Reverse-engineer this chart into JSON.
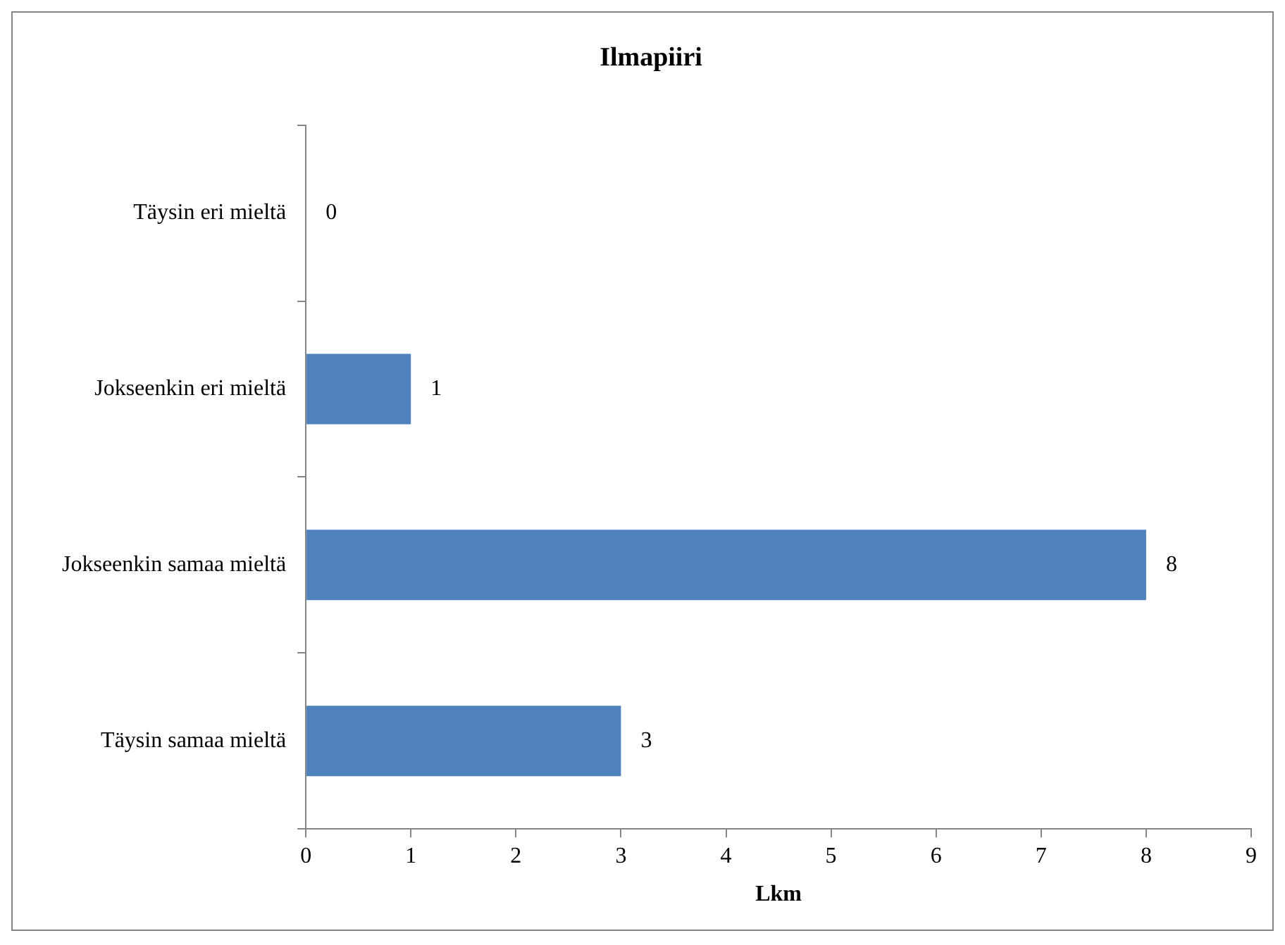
{
  "chart_data": {
    "type": "bar",
    "orientation": "horizontal",
    "title": "Ilmapiiri",
    "xlabel": "Lkm",
    "categories": [
      "Täysin eri mieltä",
      "Jokseenkin eri mieltä",
      "Jokseenkin samaa mieltä",
      "Täysin samaa mieltä"
    ],
    "values": [
      0,
      1,
      8,
      3
    ],
    "color": "#4f81bd",
    "xlim": [
      0,
      9
    ],
    "xticks": [
      0,
      1,
      2,
      3,
      4,
      5,
      6,
      7,
      8,
      9
    ],
    "grid": false,
    "legend": false,
    "data_labels": true
  }
}
